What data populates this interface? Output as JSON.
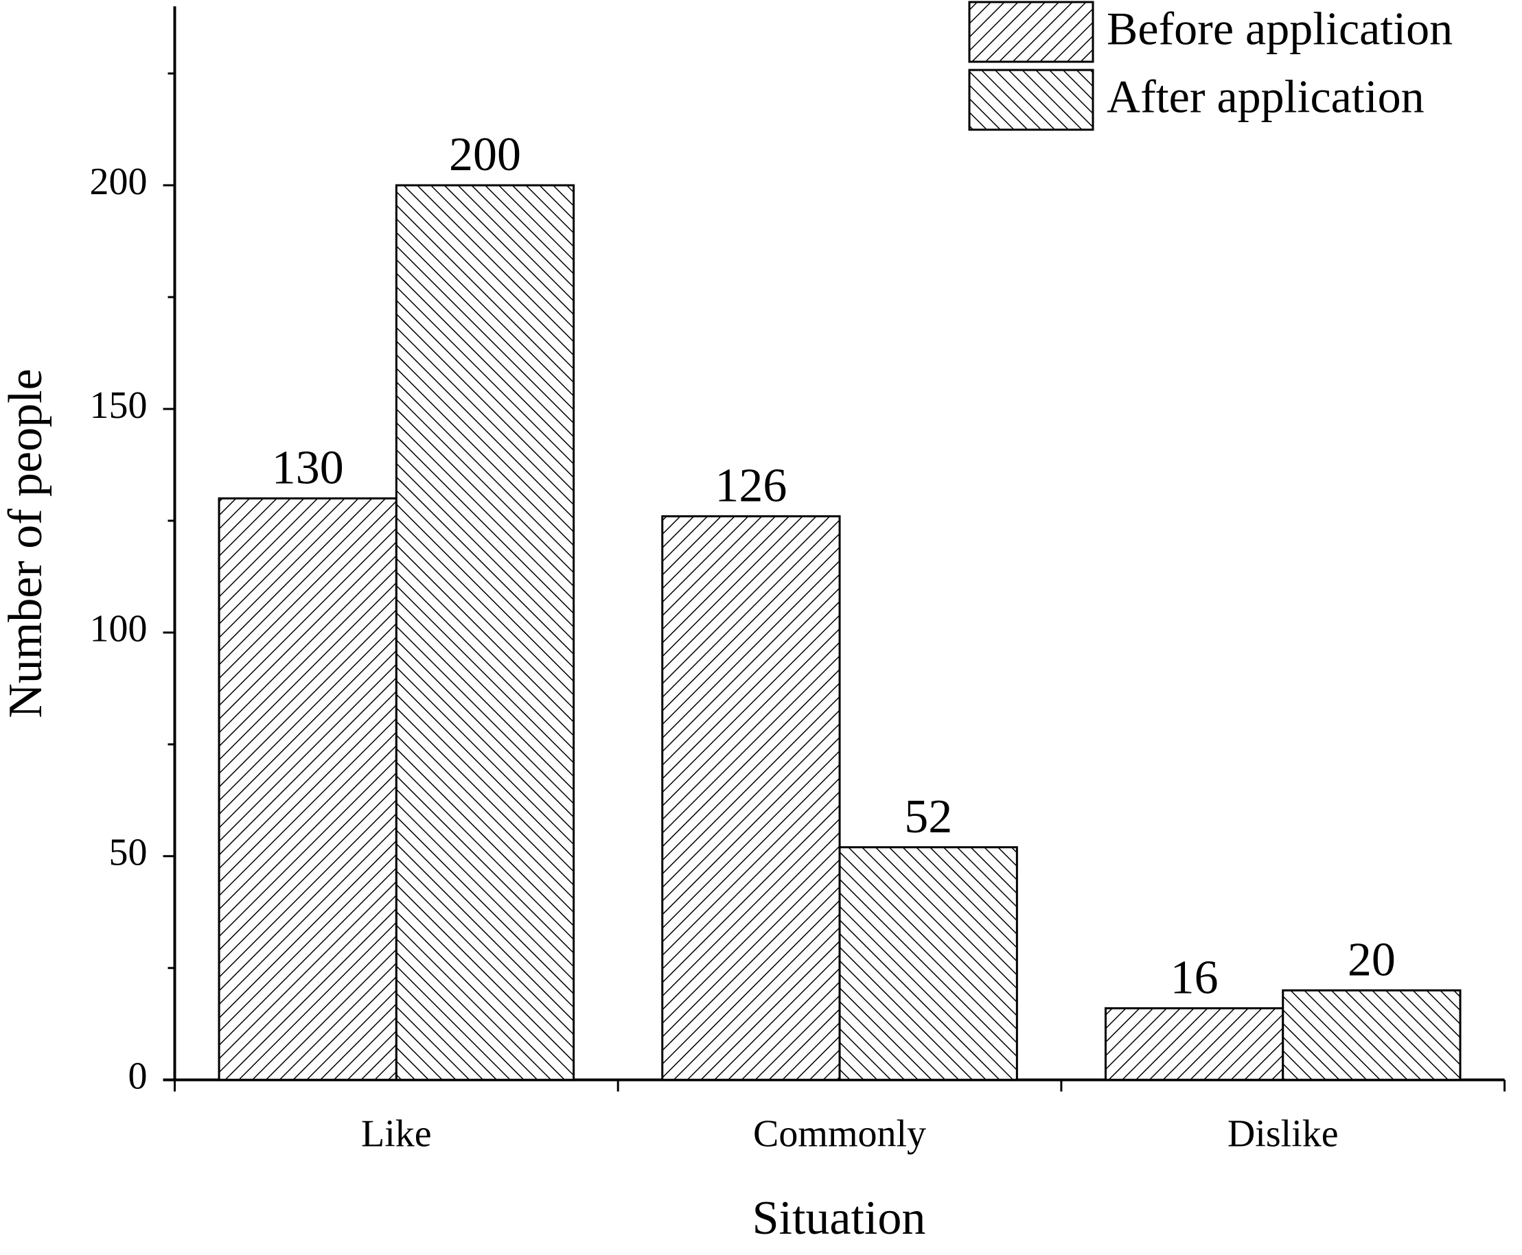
{
  "chart_data": {
    "type": "bar",
    "x_label": "Situation",
    "y_label": "Number of people",
    "categories": [
      "Like",
      "Commonly",
      "Dislike"
    ],
    "series": [
      {
        "name": "Before application",
        "color": "#000000",
        "hatch": "/",
        "values": [
          130,
          126,
          16
        ]
      },
      {
        "name": "After application",
        "color": "#000000",
        "hatch": "\\",
        "values": [
          200,
          52,
          20
        ]
      }
    ],
    "ylim": [
      0,
      240
    ],
    "yticks": [
      0,
      50,
      100,
      150,
      200
    ],
    "yminorticks": [
      25,
      75,
      125,
      175,
      225
    ],
    "legend": "top-right"
  }
}
